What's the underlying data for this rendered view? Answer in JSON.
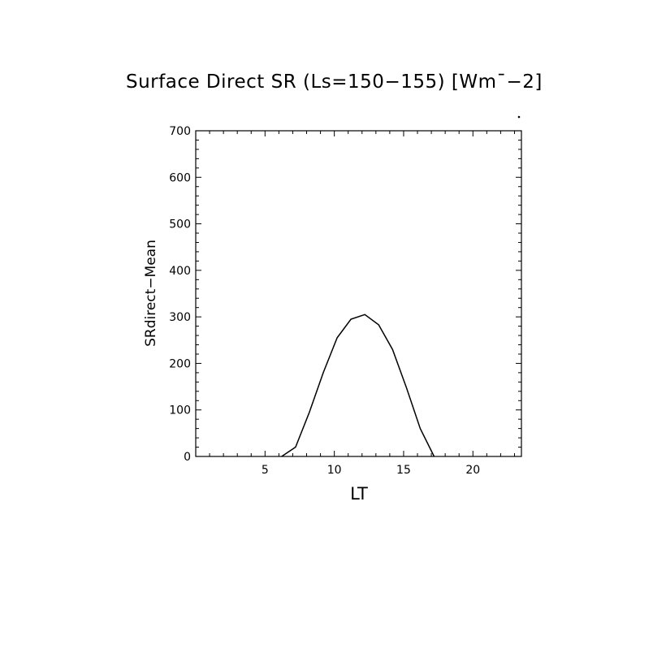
{
  "chart_data": {
    "type": "line",
    "title": "Surface Direct SR (Ls=150−155) [Wm¯−2]",
    "xlabel": "LT",
    "ylabel": "SRdirect−Mean",
    "xlim": [
      0,
      23.5
    ],
    "ylim": [
      0,
      700
    ],
    "x_ticks": [
      5,
      10,
      15,
      20
    ],
    "y_ticks": [
      0,
      100,
      200,
      300,
      400,
      500,
      600,
      700
    ],
    "grid": false,
    "series": [
      {
        "x": [
          6.2,
          7.2,
          8.2,
          9.2,
          10.2,
          11.2,
          12.2,
          13.2,
          14.2,
          15.2,
          16.2,
          17.2
        ],
        "y": [
          0,
          20,
          95,
          180,
          255,
          295,
          305,
          283,
          230,
          148,
          60,
          0
        ]
      }
    ]
  }
}
